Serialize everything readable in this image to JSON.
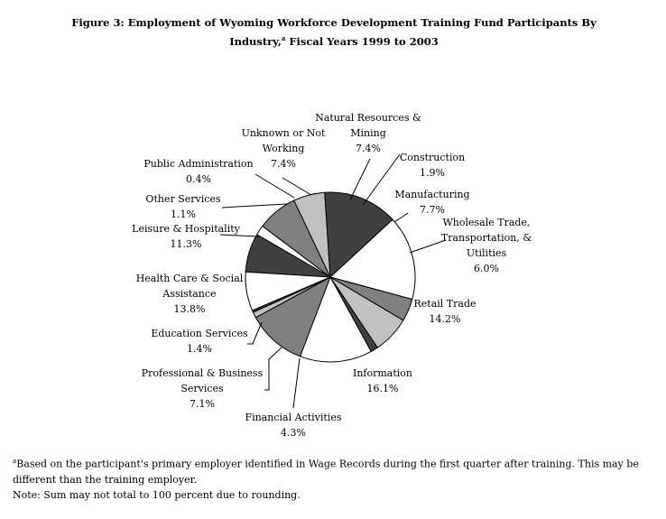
{
  "figure": {
    "title_line1": "Figure 3: Employment of Wyoming Workforce Development Training Fund Participants By",
    "title_line2_a": "Industry,",
    "title_line2_sup": "a",
    "title_line2_b": " Fiscal Years 1999 to 2003"
  },
  "chart_data": {
    "type": "pie",
    "title": "Employment of Wyoming Workforce Development Training Fund Participants By Industry, Fiscal Years 1999 to 2003",
    "unit": "%",
    "slices": [
      {
        "label": "Natural Resources & Mining",
        "label_lines": [
          "Natural Resources &",
          "Mining"
        ],
        "value": 7.4,
        "display": "7.4%",
        "color": "#404040"
      },
      {
        "label": "Construction",
        "label_lines": [
          "Construction"
        ],
        "value": 1.9,
        "display": "1.9%",
        "color": "#ffffff"
      },
      {
        "label": "Manufacturing",
        "label_lines": [
          "Manufacturing"
        ],
        "value": 7.7,
        "display": "7.7%",
        "color": "#808080"
      },
      {
        "label": "Wholesale Trade, Transportation, & Utilities",
        "label_lines": [
          "Wholesale Trade,",
          "Transportation, &",
          "Utilities"
        ],
        "value": 6.0,
        "display": "6.0%",
        "color": "#c0c0c0"
      },
      {
        "label": "Retail Trade",
        "label_lines": [
          "Retail Trade"
        ],
        "value": 14.2,
        "display": "14.2%",
        "color": "#404040"
      },
      {
        "label": "Information",
        "label_lines": [
          "Information"
        ],
        "value": 16.1,
        "display": "16.1%",
        "color": "#ffffff"
      },
      {
        "label": "Financial Activities",
        "label_lines": [
          "Financial Activities"
        ],
        "value": 4.3,
        "display": "4.3%",
        "color": "#808080"
      },
      {
        "label": "Professional & Business Services",
        "label_lines": [
          "Professional & Business",
          "Services"
        ],
        "value": 7.1,
        "display": "7.1%",
        "color": "#c0c0c0"
      },
      {
        "label": "Education Services",
        "label_lines": [
          "Education Services"
        ],
        "value": 1.4,
        "display": "1.4%",
        "color": "#404040"
      },
      {
        "label": "Health Care & Social Assistance",
        "label_lines": [
          "Health Care & Social",
          "Assistance"
        ],
        "value": 13.8,
        "display": "13.8%",
        "color": "#ffffff"
      },
      {
        "label": "Leisure & Hospitality",
        "label_lines": [
          "Leisure & Hospitality"
        ],
        "value": 11.3,
        "display": "11.3%",
        "color": "#808080"
      },
      {
        "label": "Other Services",
        "label_lines": [
          "Other Services"
        ],
        "value": 1.1,
        "display": "1.1%",
        "color": "#c0c0c0"
      },
      {
        "label": "Public Administration",
        "label_lines": [
          "Public Administration"
        ],
        "value": 0.4,
        "display": "0.4%",
        "color": "#404040"
      },
      {
        "label": "Unknown or Not Working",
        "label_lines": [
          "Unknown or Not",
          "Working"
        ],
        "value": 7.4,
        "display": "7.4%",
        "color": "#ffffff"
      }
    ]
  },
  "footnotes": {
    "note_a_sup": "a",
    "note_a_line1": "Based on the participant's primary employer identified in Wage Records during the first quarter after training. This may be",
    "note_a_line2": "different than the training employer.",
    "note_sum": "Note: Sum may not total to 100 percent due to rounding."
  }
}
